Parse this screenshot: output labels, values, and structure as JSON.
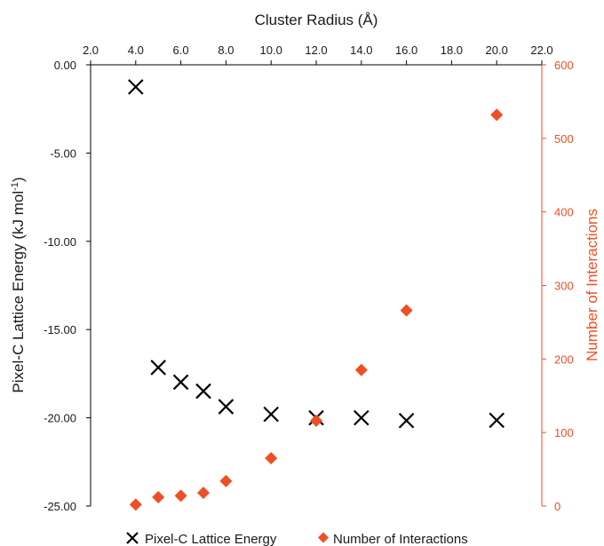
{
  "chart_data": {
    "type": "scatter",
    "title": "",
    "xlabel": "Cluster Radius (Å)",
    "xlim": [
      2.0,
      22.0
    ],
    "x_ticks": [
      "2.0",
      "4.0",
      "6.0",
      "8.0",
      "10.0",
      "12.0",
      "14.0",
      "16.0",
      "18.0",
      "20.0",
      "22.0"
    ],
    "x_axis_position": "top",
    "ylabel_left": "Pixel-C Lattice Energy (kJ mol⁻¹)",
    "ylim_left": [
      -25.0,
      0.0
    ],
    "y_ticks_left": [
      "0.00",
      "-5.00",
      "-10.00",
      "-15.00",
      "-20.00",
      "-25.00"
    ],
    "ylabel_right": "Number of Interactions",
    "ylim_right": [
      0,
      600
    ],
    "y_ticks_right": [
      "600",
      "500",
      "400",
      "300",
      "200",
      "100",
      "0"
    ],
    "grid": false,
    "legend_position": "bottom",
    "colors": {
      "energy": "#000000",
      "interactions": "#f04e23"
    },
    "series": [
      {
        "name": "Pixel-C Lattice Energy",
        "axis": "left",
        "marker": "x",
        "x": [
          4,
          5,
          6,
          7,
          8,
          10,
          12,
          14,
          16,
          20
        ],
        "y": [
          -1.25,
          -17.15,
          -17.98,
          -18.49,
          -19.37,
          -19.8,
          -20.0,
          -20.0,
          -20.16,
          -20.14
        ]
      },
      {
        "name": "Number of Interactions",
        "axis": "right",
        "marker": "diamond",
        "x": [
          4,
          5,
          6,
          7,
          8,
          10,
          12,
          14,
          16,
          20
        ],
        "y": [
          2,
          12,
          14,
          18,
          34,
          65,
          116,
          185,
          266,
          532
        ]
      }
    ]
  }
}
